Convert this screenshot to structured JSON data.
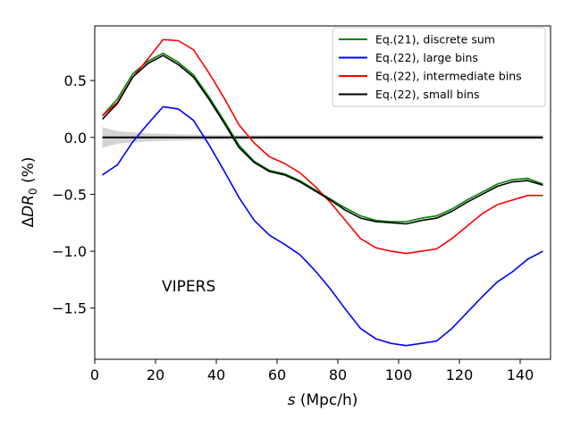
{
  "chart_data": {
    "type": "line",
    "xlabel": "s (Mpc/h)",
    "ylabel": "ΔDR₀ (%)",
    "xlim": [
      0,
      150
    ],
    "ylim": [
      -1.95,
      0.98
    ],
    "xticks": [
      0,
      20,
      40,
      60,
      80,
      100,
      120,
      140
    ],
    "yticks": [
      -1.5,
      -1.0,
      -0.5,
      0.0,
      0.5
    ],
    "ytick_labels": [
      "−1.5",
      "−1.0",
      "−0.5",
      "0.0",
      "0.5"
    ],
    "grid": false,
    "legend_position": "top-right",
    "annotation": "VIPERS",
    "x": [
      2.5,
      7.5,
      12.5,
      17.5,
      22.5,
      27.5,
      32.5,
      37.5,
      42.5,
      47.5,
      52.5,
      57.5,
      62.5,
      67.5,
      72.5,
      77.5,
      82.5,
      87.5,
      92.5,
      97.5,
      102.5,
      107.5,
      112.5,
      117.5,
      122.5,
      127.5,
      132.5,
      137.5,
      142.5,
      147.5
    ],
    "series": [
      {
        "name": "Eq.(21), discrete sum",
        "color": "#008000",
        "values": [
          0.19,
          0.34,
          0.56,
          0.67,
          0.74,
          0.66,
          0.55,
          0.36,
          0.15,
          -0.07,
          -0.21,
          -0.29,
          -0.32,
          -0.38,
          -0.46,
          -0.54,
          -0.62,
          -0.69,
          -0.73,
          -0.74,
          -0.74,
          -0.71,
          -0.69,
          -0.63,
          -0.55,
          -0.48,
          -0.41,
          -0.37,
          -0.36,
          -0.41
        ]
      },
      {
        "name": "Eq.(22), large bins",
        "color": "#0000ff",
        "values": [
          -0.33,
          -0.24,
          -0.04,
          0.12,
          0.27,
          0.25,
          0.15,
          -0.06,
          -0.29,
          -0.53,
          -0.73,
          -0.86,
          -0.94,
          -1.03,
          -1.17,
          -1.33,
          -1.51,
          -1.68,
          -1.77,
          -1.81,
          -1.83,
          -1.81,
          -1.79,
          -1.68,
          -1.54,
          -1.4,
          -1.27,
          -1.18,
          -1.07,
          -1.0
        ]
      },
      {
        "name": "Eq.(22), intermediate bins",
        "color": "#ff0000",
        "values": [
          0.19,
          0.31,
          0.53,
          0.69,
          0.86,
          0.85,
          0.77,
          0.57,
          0.35,
          0.11,
          -0.05,
          -0.17,
          -0.23,
          -0.31,
          -0.43,
          -0.57,
          -0.73,
          -0.89,
          -0.97,
          -1.0,
          -1.02,
          -1.0,
          -0.98,
          -0.89,
          -0.78,
          -0.67,
          -0.59,
          -0.55,
          -0.51,
          -0.51
        ]
      },
      {
        "name": "Eq.(22), small bins",
        "color": "#000000",
        "values": [
          0.16,
          0.3,
          0.53,
          0.65,
          0.72,
          0.64,
          0.53,
          0.34,
          0.13,
          -0.09,
          -0.22,
          -0.3,
          -0.33,
          -0.39,
          -0.47,
          -0.55,
          -0.64,
          -0.71,
          -0.74,
          -0.75,
          -0.76,
          -0.73,
          -0.71,
          -0.65,
          -0.57,
          -0.5,
          -0.43,
          -0.39,
          -0.38,
          -0.42
        ]
      }
    ],
    "reference_line": {
      "y": 0.0,
      "color": "#000000"
    },
    "uncertainty_band": {
      "color": "#d3d3d3",
      "x": [
        2.5,
        7.5,
        12.5,
        17.5,
        22.5,
        27.5,
        32.5,
        37.5,
        42.5,
        47.5,
        52.5,
        60,
        70,
        80,
        90,
        100,
        110,
        120,
        130,
        140,
        147.5
      ],
      "upper": [
        0.09,
        0.055,
        0.045,
        0.035,
        0.032,
        0.028,
        0.025,
        0.022,
        0.02,
        0.02,
        0.02,
        0.02,
        0.02,
        0.02,
        0.02,
        0.02,
        0.02,
        0.02,
        0.02,
        0.02,
        0.02
      ],
      "lower": [
        -0.09,
        -0.055,
        -0.045,
        -0.035,
        -0.032,
        -0.028,
        -0.025,
        -0.022,
        -0.02,
        -0.02,
        -0.02,
        -0.02,
        -0.02,
        -0.02,
        -0.02,
        -0.02,
        -0.02,
        -0.02,
        -0.02,
        -0.02,
        -0.02
      ]
    }
  }
}
